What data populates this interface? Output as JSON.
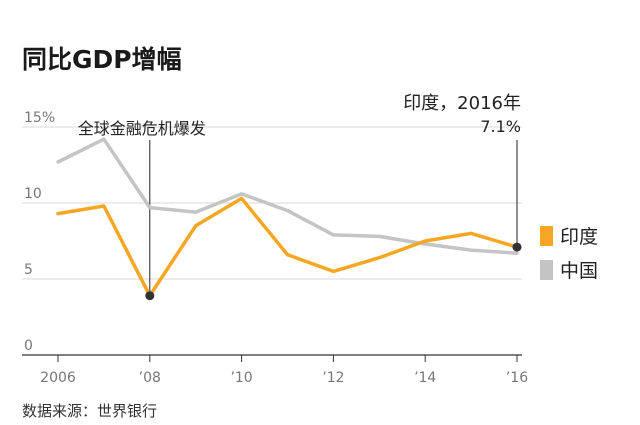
{
  "title": "同比GDP增幅",
  "source": "数据来源：世界银行",
  "chart_data": {
    "type": "line",
    "title": "同比GDP增幅",
    "x": [
      2006,
      2007,
      2008,
      2009,
      2010,
      2011,
      2012,
      2013,
      2014,
      2015,
      2016
    ],
    "x_tick_labels": [
      "2006",
      "’08",
      "’10",
      "’12",
      "’14",
      "’16"
    ],
    "x_tick_values": [
      2006,
      2008,
      2010,
      2012,
      2014,
      2016
    ],
    "y_tick_labels": [
      "15%",
      "10",
      "5",
      "0"
    ],
    "y_tick_values": [
      15,
      10,
      5,
      0
    ],
    "ylim": [
      0,
      15
    ],
    "xlim": [
      2006,
      2016
    ],
    "grid": true,
    "legend_position": "right",
    "series": [
      {
        "name": "印度",
        "color": "#f5a623",
        "values": [
          9.3,
          9.8,
          3.9,
          8.5,
          10.3,
          6.6,
          5.5,
          6.4,
          7.5,
          8.0,
          7.1
        ]
      },
      {
        "name": "中国",
        "color": "#c4c4c4",
        "values": [
          12.7,
          14.2,
          9.7,
          9.4,
          10.6,
          9.5,
          7.9,
          7.8,
          7.3,
          6.9,
          6.7
        ]
      }
    ],
    "annotations": [
      {
        "text": "全球金融危机爆发",
        "x": 2008,
        "y": 3.9
      },
      {
        "text": "印度，2016年",
        "value_text": "7.1%",
        "x": 2016,
        "y": 7.1
      }
    ]
  }
}
